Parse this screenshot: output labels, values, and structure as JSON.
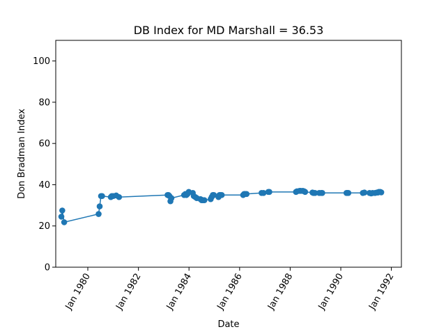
{
  "chart_data": {
    "type": "line",
    "title": "DB Index for MD Marshall = 36.53",
    "xlabel": "Date",
    "ylabel": "Don Bradman Index",
    "ylim": [
      0,
      110
    ],
    "xlim": [
      "1978-09-25",
      "1992-05-25"
    ],
    "y_ticks": [
      0,
      20,
      40,
      60,
      80,
      100
    ],
    "x_ticks": [
      "1980-01-01",
      "1982-01-01",
      "1984-01-01",
      "1986-01-01",
      "1988-01-01",
      "1990-01-01",
      "1992-01-01"
    ],
    "x_tick_labels": [
      "Jan 1980",
      "Jan 1982",
      "Jan 1984",
      "Jan 1986",
      "Jan 1988",
      "Jan 1990",
      "Jan 1992"
    ],
    "grid": false,
    "markers": true,
    "line_color": "#1f77b4",
    "series": [
      {
        "x": [
          "1978-12-15",
          "1978-12-28",
          "1979-01-25",
          "1980-06-05",
          "1980-06-20",
          "1980-07-10",
          "1980-07-25",
          "1980-11-28",
          "1980-12-12",
          "1981-01-03",
          "1981-02-14",
          "1981-03-27",
          "1983-02-25",
          "1983-03-11",
          "1983-03-25",
          "1983-04-08",
          "1983-04-22",
          "1983-10-22",
          "1983-11-10",
          "1983-11-25",
          "1983-12-10",
          "1983-12-29",
          "1984-02-25",
          "1984-03-10",
          "1984-04-02",
          "1984-04-22",
          "1984-06-15",
          "1984-07-02",
          "1984-07-20",
          "1984-08-10",
          "1984-11-09",
          "1984-11-23",
          "1984-12-10",
          "1984-12-25",
          "1985-03-02",
          "1985-03-16",
          "1985-03-30",
          "1985-04-18",
          "1986-02-21",
          "1986-03-07",
          "1986-03-21",
          "1986-04-11",
          "1986-11-14",
          "1986-12-12",
          "1987-02-20",
          "1987-03-06",
          "1988-03-25",
          "1988-04-08",
          "1988-05-15",
          "1988-06-02",
          "1988-07-02",
          "1988-07-21",
          "1988-08-04",
          "1988-11-18",
          "1988-12-02",
          "1988-12-24",
          "1989-02-24",
          "1989-03-25",
          "1989-04-08",
          "1990-03-24",
          "1990-04-05",
          "1990-04-20",
          "1990-11-15",
          "1990-12-08",
          "1991-02-20",
          "1991-03-15",
          "1991-04-05",
          "1991-05-10",
          "1991-06-06",
          "1991-06-20",
          "1991-07-04",
          "1991-07-25",
          "1991-08-08"
        ],
        "y": [
          24.5,
          27.5,
          21.8,
          25.8,
          29.5,
          34.5,
          34.5,
          34.0,
          34.5,
          34.5,
          34.8,
          34.0,
          35.0,
          35.0,
          34.5,
          32.0,
          33.5,
          35.0,
          35.5,
          35.0,
          35.5,
          36.5,
          36.0,
          34.5,
          34.0,
          33.5,
          33.0,
          32.5,
          32.5,
          32.5,
          33.0,
          34.0,
          35.0,
          35.0,
          34.0,
          35.0,
          35.0,
          35.0,
          35.0,
          35.5,
          35.5,
          35.5,
          36.0,
          36.0,
          36.5,
          36.5,
          36.5,
          36.8,
          37.0,
          37.0,
          37.0,
          36.8,
          36.5,
          36.2,
          36.0,
          36.0,
          36.0,
          36.0,
          36.0,
          36.0,
          36.0,
          36.0,
          36.0,
          36.2,
          36.0,
          35.8,
          36.0,
          36.0,
          36.2,
          36.2,
          36.5,
          36.5,
          36.3
        ]
      }
    ]
  }
}
